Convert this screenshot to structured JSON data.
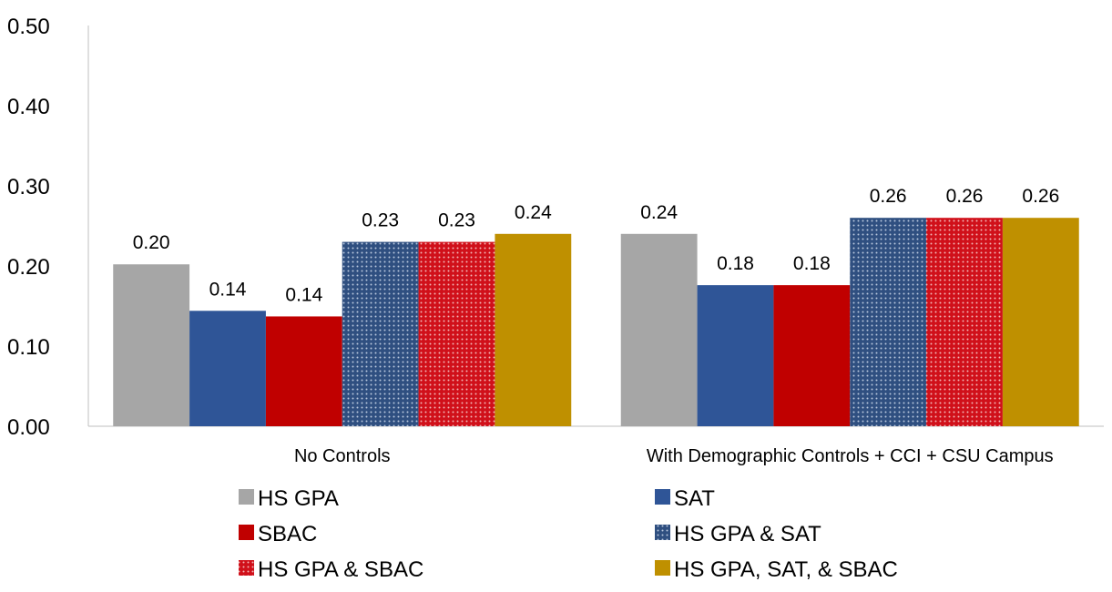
{
  "chart_data": {
    "type": "bar",
    "title": "",
    "xlabel": "",
    "ylabel": "",
    "ylim": [
      0,
      0.5
    ],
    "yticks": [
      "0.00",
      "0.10",
      "0.20",
      "0.30",
      "0.40",
      "0.50"
    ],
    "categories": [
      "No Controls",
      "With Demographic Controls + CCI + CSU Campus"
    ],
    "series": [
      {
        "name": "HS GPA",
        "values": [
          0.202,
          0.24
        ],
        "labels": [
          "0.20",
          "0.24"
        ],
        "color": "#a6a6a6",
        "pattern": "solid"
      },
      {
        "name": "SAT",
        "values": [
          0.144,
          0.176
        ],
        "labels": [
          "0.14",
          "0.18"
        ],
        "color": "#2f5597",
        "pattern": "solid"
      },
      {
        "name": "SBAC",
        "values": [
          0.137,
          0.176
        ],
        "labels": [
          "0.14",
          "0.18"
        ],
        "color": "#c00000",
        "pattern": "solid"
      },
      {
        "name": "HS GPA & SAT",
        "values": [
          0.23,
          0.26
        ],
        "labels": [
          "0.23",
          "0.26"
        ],
        "color": "#2f4f80",
        "pattern": "dots"
      },
      {
        "name": "HS GPA & SBAC",
        "values": [
          0.23,
          0.26
        ],
        "labels": [
          "0.23",
          "0.26"
        ],
        "color": "#d0101a",
        "pattern": "dots"
      },
      {
        "name": "HS GPA, SAT, & SBAC",
        "values": [
          0.24,
          0.26
        ],
        "labels": [
          "0.24",
          "0.26"
        ],
        "color": "#bf9000",
        "pattern": "solid"
      }
    ],
    "grid": false,
    "legend_position": "bottom"
  }
}
